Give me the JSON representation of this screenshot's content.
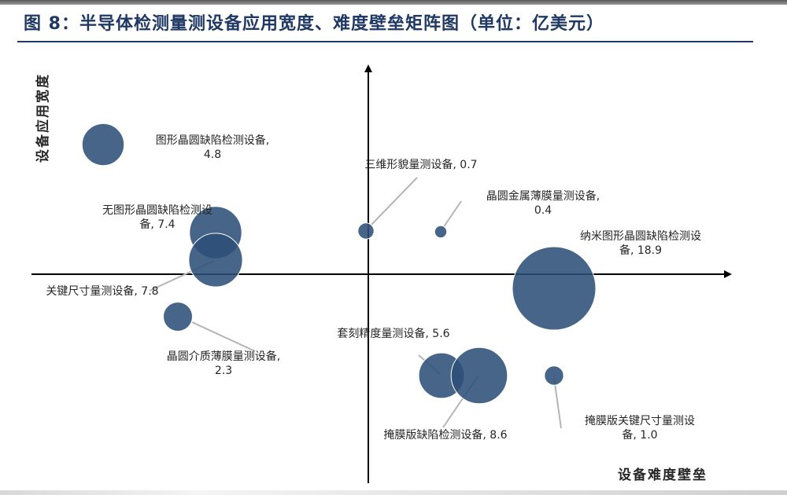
{
  "title": "图 8：半导体检测量测设备应用宽度、难度壁垒矩阵图（单位：亿美元）",
  "chart_data": {
    "type": "bubble",
    "title": "图 8：半导体检测量测设备应用宽度、难度壁垒矩阵图（单位：亿美元）",
    "xlabel": "设备难度壁垒",
    "ylabel": "设备应用宽度",
    "unit": "亿美元",
    "points": [
      {
        "label_lines": [
          "图形晶圆缺陷检测设备,",
          "4.8"
        ],
        "value": 4.8
      },
      {
        "label_lines": [
          "无图形晶圆缺陷检测设",
          "备, 7.4"
        ],
        "value": 7.4
      },
      {
        "label_lines": [
          "关键尺寸量测设备, 7.8"
        ],
        "value": 7.8
      },
      {
        "label_lines": [
          "晶圆介质薄膜量测设备,",
          "2.3"
        ],
        "value": 2.3
      },
      {
        "label_lines": [
          "三维形貌量测设备, 0.7"
        ],
        "value": 0.7
      },
      {
        "label_lines": [
          "晶圆金属薄膜量测设备,",
          "0.4"
        ],
        "value": 0.4
      },
      {
        "label_lines": [
          "纳米图形晶圆缺陷检测设",
          "备, 18.9"
        ],
        "value": 18.9
      },
      {
        "label_lines": [
          "套刻精度量测设备, 5.6"
        ],
        "value": 5.6
      },
      {
        "label_lines": [
          "掩膜版缺陷检测设备, 8.6"
        ],
        "value": 8.6
      },
      {
        "label_lines": [
          "掩膜版关键尺寸量测设",
          "备, 1.0"
        ],
        "value": 1.0
      }
    ],
    "bubble_color": "#2e5077"
  }
}
